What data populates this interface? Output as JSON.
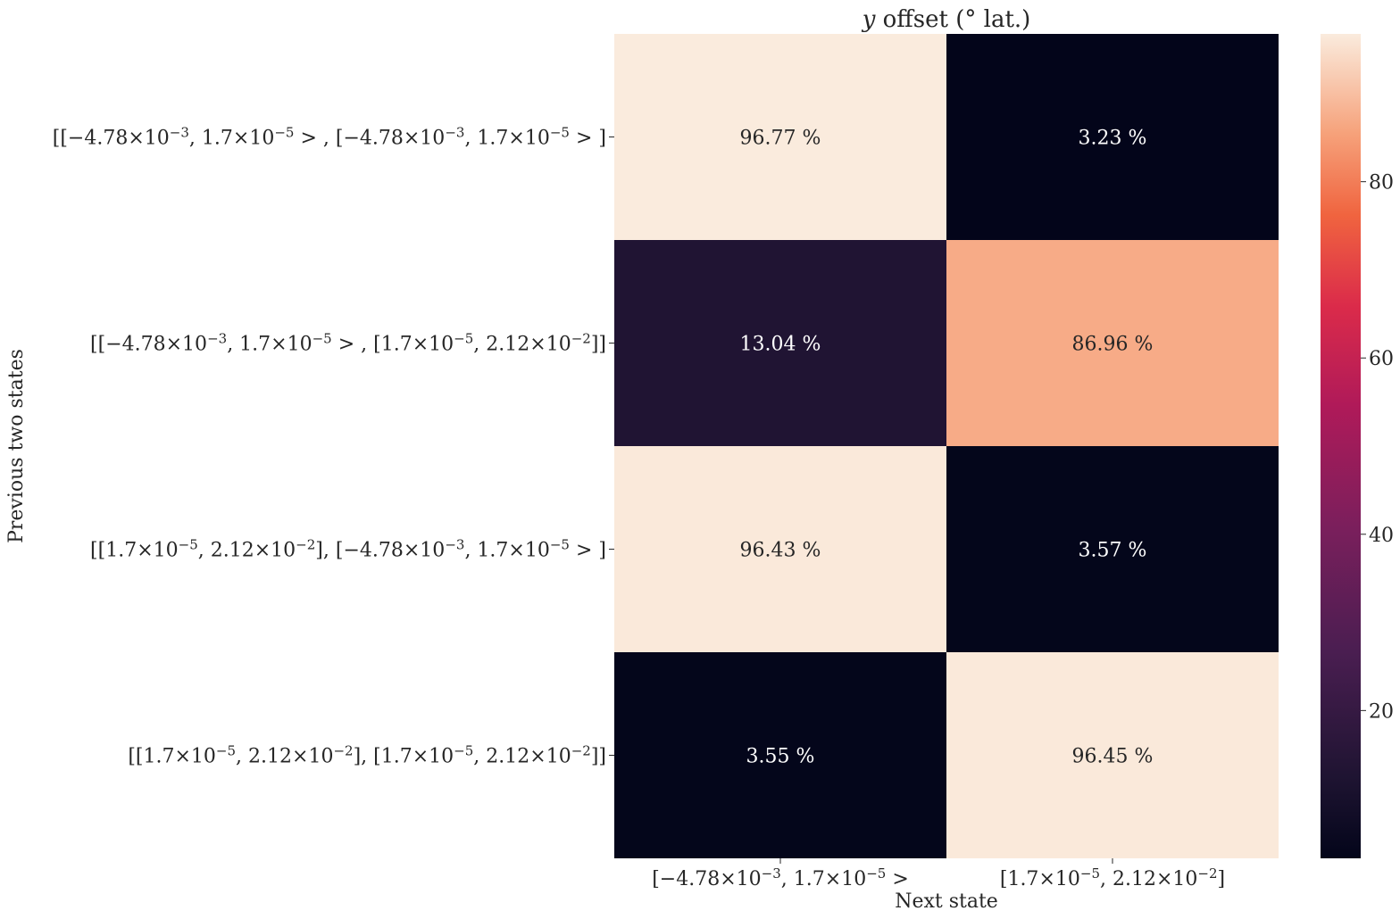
{
  "chart_data": {
    "type": "heatmap",
    "title": "y offset (° lat.)",
    "xlabel": "Next state",
    "ylabel": "Previous two states",
    "x_categories": [
      {
        "mant1": "[−4.78",
        "exp1": "−3",
        "mant2": ", 1.7",
        "exp2": "−5",
        "close": " >"
      },
      {
        "mant1": "[1.7",
        "exp1": "−5",
        "mant2": ", 2.12",
        "exp2": "−2",
        "close": "]"
      }
    ],
    "y_categories": [
      {
        "segments": [
          "[[−4.78",
          "−3",
          ", 1.7",
          "−5",
          " > , [−4.78",
          "−3",
          ", 1.7",
          "−5",
          " > ]"
        ]
      },
      {
        "segments": [
          "[[−4.78",
          "−3",
          ", 1.7",
          "−5",
          " > , [1.7",
          "−5",
          ", 2.12",
          "−2",
          "]]"
        ]
      },
      {
        "segments": [
          "[[1.7",
          "−5",
          ", 2.12",
          "−2",
          "], [−4.78",
          "−3",
          ", 1.7",
          "−5",
          " > ]"
        ]
      },
      {
        "segments": [
          "[[1.7",
          "−5",
          ", 2.12",
          "−2",
          "], [1.7",
          "−5",
          ", 2.12",
          "−2",
          "]]"
        ]
      }
    ],
    "values": [
      [
        96.77,
        3.23
      ],
      [
        13.04,
        86.96
      ],
      [
        96.43,
        3.57
      ],
      [
        3.55,
        96.45
      ]
    ],
    "cell_labels": [
      [
        "96.77 %",
        "3.23 %"
      ],
      [
        "13.04 %",
        "86.96 %"
      ],
      [
        "96.43 %",
        "3.57 %"
      ],
      [
        "3.55 %",
        "96.45 %"
      ]
    ],
    "colormap": "rocket",
    "colorbar": {
      "ticks": [
        20,
        40,
        60,
        80
      ],
      "tick_labels": [
        "20",
        "40",
        "60",
        "80"
      ],
      "vmin": 3.23,
      "vmax": 96.77
    },
    "grid": false,
    "legend": "colorbar-right"
  }
}
